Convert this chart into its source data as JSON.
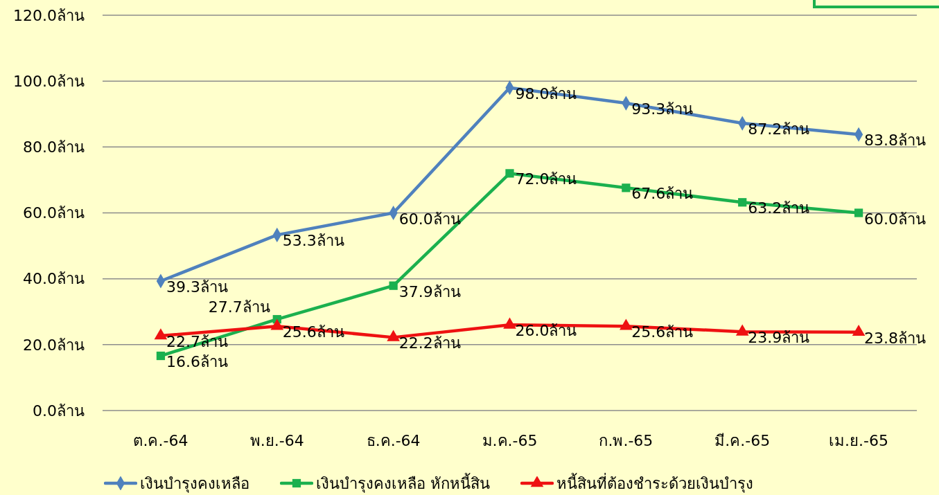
{
  "chart_data": {
    "type": "line",
    "categories": [
      "ต.ค.-64",
      "พ.ย.-64",
      "ธ.ค.-64",
      "ม.ค.-65",
      "ก.พ.-65",
      "มี.ค.-65",
      "เม.ย.-65"
    ],
    "series": [
      {
        "name": "เงินบำรุงคงเหลือ",
        "color": "#4f81bd",
        "marker": "diamond",
        "values": [
          39.3,
          53.3,
          60.0,
          98.0,
          93.3,
          87.2,
          83.8
        ],
        "value_labels": [
          "39.3ล้าน",
          "53.3ล้าน",
          "60.0ล้าน",
          "98.0ล้าน",
          "93.3ล้าน",
          "87.2ล้าน",
          "83.8ล้าน"
        ]
      },
      {
        "name": "เงินบำรุงคงเหลือ หักหนี้สิน",
        "color": "#1bb04e",
        "marker": "square",
        "values": [
          16.6,
          27.7,
          37.9,
          72.0,
          67.6,
          63.2,
          60.0
        ],
        "value_labels": [
          "16.6ล้าน",
          "27.7ล้าน",
          "37.9ล้าน",
          "72.0ล้าน",
          "67.6ล้าน",
          "63.2ล้าน",
          "60.0ล้าน"
        ]
      },
      {
        "name": "หนี้สินที่ต้องชำระด้วยเงินบำรุง",
        "color": "#ee1111",
        "marker": "triangle",
        "values": [
          22.7,
          25.6,
          22.2,
          26.0,
          25.6,
          23.9,
          23.8
        ],
        "value_labels": [
          "22.7ล้าน",
          "25.6ล้าน",
          "22.2ล้าน",
          "26.0ล้าน",
          "25.6ล้าน",
          "23.9ล้าน",
          "23.8ล้าน"
        ]
      }
    ],
    "ylim": [
      0,
      120
    ],
    "yticks": [
      {
        "value": 0,
        "label": "0.0ล้าน"
      },
      {
        "value": 20,
        "label": "20.0ล้าน"
      },
      {
        "value": 40,
        "label": "40.0ล้าน"
      },
      {
        "value": 60,
        "label": "60.0ล้าน"
      },
      {
        "value": 80,
        "label": "80.0ล้าน"
      },
      {
        "value": 100,
        "label": "100.0ล้าน"
      },
      {
        "value": 120,
        "label": "120.0ล้าน"
      }
    ],
    "grid": "y",
    "legend": "bottom",
    "line_style": "solid"
  }
}
